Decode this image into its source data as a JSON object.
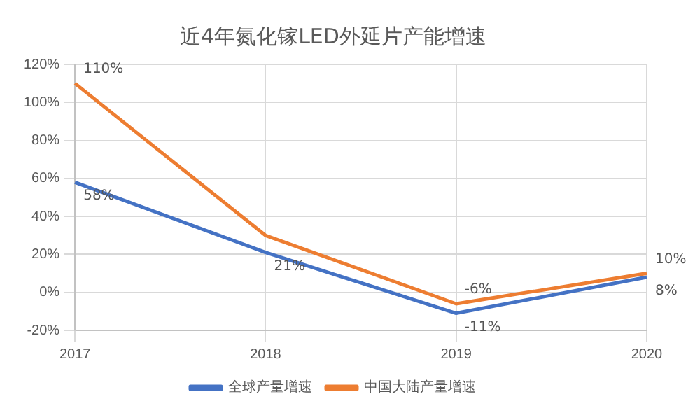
{
  "chart_data": {
    "type": "line",
    "title": "近4年氮化镓LED外延片产能增速",
    "categories": [
      "2017",
      "2018",
      "2019",
      "2020"
    ],
    "series": [
      {
        "name": "全球产量增速",
        "color": "#4472c4",
        "values": [
          58,
          21,
          -11,
          8
        ],
        "value_labels": [
          "58%",
          "21%",
          "-11%",
          "8%"
        ]
      },
      {
        "name": "中国大陆产量增速",
        "color": "#ed7d31",
        "values": [
          110,
          30,
          -6,
          10
        ],
        "value_labels": [
          "110%",
          null,
          "-6%",
          "10%"
        ]
      }
    ],
    "ylim": [
      -20,
      120
    ],
    "yticks": [
      {
        "value": -20,
        "label": "-20%"
      },
      {
        "value": 0,
        "label": "0%"
      },
      {
        "value": 20,
        "label": "20%"
      },
      {
        "value": 40,
        "label": "40%"
      },
      {
        "value": 60,
        "label": "60%"
      },
      {
        "value": 80,
        "label": "80%"
      },
      {
        "value": 100,
        "label": "100%"
      },
      {
        "value": 120,
        "label": "120%"
      }
    ],
    "grid": true,
    "legend": "bottom",
    "marker": "none",
    "line_style": "solid"
  }
}
